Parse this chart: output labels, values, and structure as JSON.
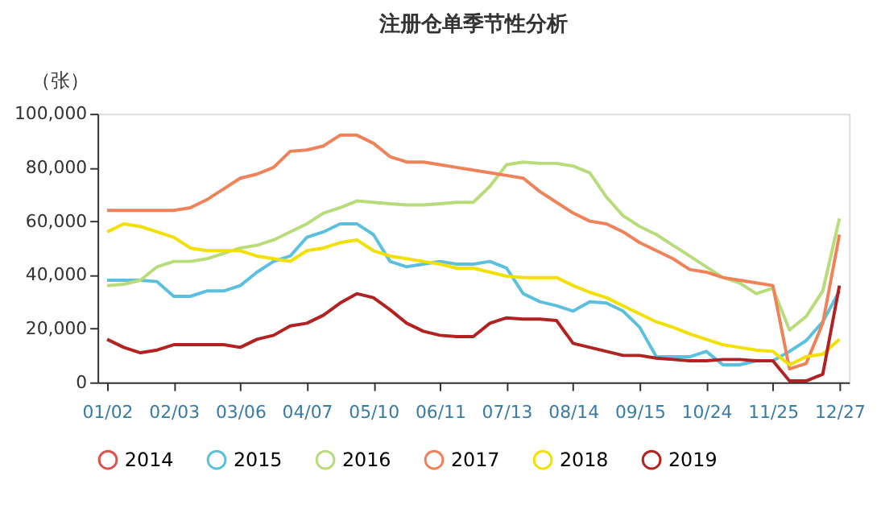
{
  "chart_data": {
    "type": "line",
    "title": "注册仓单季节性分析",
    "ylabel": "（张）",
    "categories": [
      "01/02",
      null,
      null,
      null,
      "02/03",
      null,
      null,
      null,
      "03/06",
      null,
      null,
      null,
      "04/07",
      null,
      null,
      null,
      "05/10",
      null,
      null,
      null,
      "06/11",
      null,
      null,
      null,
      "07/13",
      null,
      null,
      null,
      "08/14",
      null,
      null,
      null,
      "09/15",
      null,
      null,
      null,
      "10/24",
      null,
      null,
      null,
      "11/25",
      null,
      null,
      null,
      "12/27"
    ],
    "ylim": [
      0,
      100000
    ],
    "yticks": [
      0,
      {
        "value": 20000,
        "label": "20,000"
      },
      {
        "value": 40000,
        "label": "40,000"
      },
      {
        "value": 60000,
        "label": "60,000"
      },
      {
        "value": 80000,
        "label": "80,000"
      },
      {
        "value": 100000,
        "label": "100,000"
      }
    ],
    "grid": false,
    "legend": "bottom",
    "marker": "none",
    "line_style": "solid",
    "series": [
      {
        "name": "2014",
        "color": "#d9534f",
        "values": [
          null,
          null,
          null,
          null,
          null,
          null,
          null,
          null,
          null,
          null,
          null,
          null,
          null,
          null,
          null,
          null,
          null,
          null,
          null,
          null,
          null,
          null,
          null,
          null,
          null,
          null,
          null,
          null,
          null,
          null,
          null,
          null,
          null,
          null,
          null,
          null,
          null,
          null,
          null,
          null,
          null,
          null,
          null,
          null,
          null
        ]
      },
      {
        "name": "2015",
        "color": "#5bc0de",
        "values": [
          38000,
          38000,
          38000,
          37500,
          32000,
          32000,
          34000,
          34000,
          36000,
          41000,
          45000,
          47000,
          54000,
          56000,
          59000,
          59000,
          55000,
          45000,
          43000,
          44000,
          45000,
          44000,
          44000,
          45000,
          42500,
          33000,
          30000,
          28500,
          26500,
          30000,
          29500,
          26500,
          20500,
          9500,
          9500,
          9500,
          11500,
          6500,
          6500,
          8000,
          8000,
          11500,
          15500,
          22500,
          34000
        ]
      },
      {
        "name": "2016",
        "color": "#b8dc7a",
        "values": [
          36000,
          36500,
          38000,
          43000,
          45000,
          45000,
          46000,
          48000,
          50000,
          51000,
          53000,
          56000,
          59000,
          63000,
          65000,
          67500,
          67000,
          66500,
          66000,
          66000,
          66500,
          67000,
          67000,
          73000,
          81000,
          82000,
          81500,
          81500,
          80500,
          78000,
          69000,
          62000,
          58000,
          55000,
          51000,
          47000,
          43000,
          39000,
          37000,
          33000,
          35000,
          19500,
          24500,
          34000,
          61000
        ]
      },
      {
        "name": "2017",
        "color": "#f0825a",
        "values": [
          64000,
          64000,
          64000,
          64000,
          64000,
          65000,
          68000,
          72000,
          76000,
          77500,
          80000,
          86000,
          86500,
          88000,
          92000,
          92000,
          89000,
          84000,
          82000,
          82000,
          81000,
          80000,
          79000,
          78000,
          77000,
          76000,
          71000,
          67000,
          63000,
          60000,
          59000,
          56000,
          52000,
          49000,
          46000,
          42000,
          41000,
          39000,
          38000,
          37000,
          36000,
          5000,
          7000,
          22000,
          55000
        ]
      },
      {
        "name": "2018",
        "color": "#f2e000",
        "values": [
          56000,
          59000,
          58000,
          56000,
          54000,
          50000,
          49000,
          49000,
          49000,
          47000,
          46000,
          45000,
          49000,
          50000,
          52000,
          53000,
          49000,
          47000,
          46000,
          45000,
          44000,
          42500,
          42500,
          41000,
          39500,
          39000,
          39000,
          39000,
          36000,
          33500,
          31500,
          28500,
          25500,
          22500,
          20500,
          18000,
          16000,
          14000,
          13000,
          12000,
          11500,
          6500,
          9500,
          10500,
          16000
        ]
      },
      {
        "name": "2019",
        "color": "#b22222",
        "values": [
          16000,
          13000,
          11000,
          12000,
          14000,
          14000,
          14000,
          14000,
          13000,
          16000,
          17500,
          21000,
          22000,
          25000,
          29500,
          33000,
          31500,
          27000,
          22000,
          19000,
          17500,
          17000,
          17000,
          22000,
          24000,
          23500,
          23500,
          23000,
          14500,
          13000,
          11500,
          10000,
          10000,
          9000,
          8500,
          8000,
          8000,
          8500,
          8500,
          8000,
          8000,
          500,
          500,
          3000,
          36000
        ]
      }
    ]
  }
}
